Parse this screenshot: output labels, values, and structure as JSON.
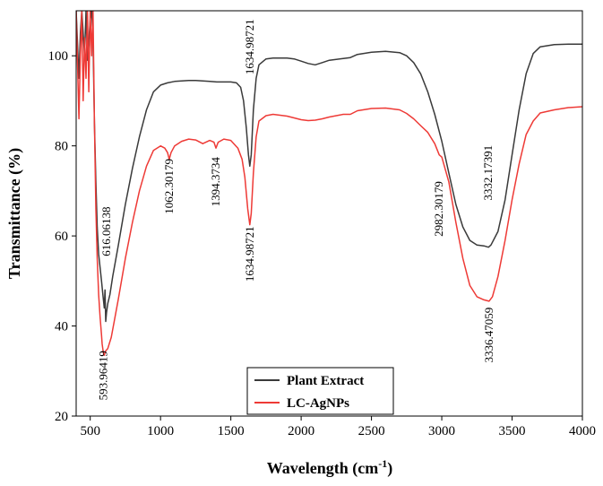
{
  "chart_data": {
    "type": "line",
    "xlabel": "Wavelength (cm",
    "xlabel_sup": "-1",
    "xlabel_suffix": ")",
    "ylabel": "Transmittance (%)",
    "xlim": [
      400,
      4000
    ],
    "ylim": [
      20,
      110
    ],
    "xticks": [
      500,
      1000,
      1500,
      2000,
      2500,
      3000,
      3500,
      4000
    ],
    "yticks": [
      20,
      40,
      60,
      80,
      100
    ],
    "series": [
      {
        "name": "Plant Extract",
        "color": "#3a3a3a",
        "points": [
          [
            400,
            110
          ],
          [
            420,
            95
          ],
          [
            430,
            105
          ],
          [
            440,
            110
          ],
          [
            460,
            100
          ],
          [
            470,
            110
          ],
          [
            480,
            99
          ],
          [
            500,
            108
          ],
          [
            510,
            110
          ],
          [
            520,
            104
          ],
          [
            530,
            85
          ],
          [
            540,
            72
          ],
          [
            550,
            62
          ],
          [
            560,
            56
          ],
          [
            570,
            53
          ],
          [
            580,
            50
          ],
          [
            590,
            47
          ],
          [
            600,
            44
          ],
          [
            605,
            48
          ],
          [
            610,
            41
          ],
          [
            616,
            43
          ],
          [
            625,
            45
          ],
          [
            640,
            47
          ],
          [
            660,
            51
          ],
          [
            700,
            58
          ],
          [
            750,
            67
          ],
          [
            800,
            75
          ],
          [
            850,
            82
          ],
          [
            900,
            88
          ],
          [
            950,
            92
          ],
          [
            1000,
            93.5
          ],
          [
            1050,
            94
          ],
          [
            1100,
            94.3
          ],
          [
            1150,
            94.4
          ],
          [
            1200,
            94.5
          ],
          [
            1250,
            94.5
          ],
          [
            1300,
            94.4
          ],
          [
            1350,
            94.3
          ],
          [
            1400,
            94.2
          ],
          [
            1450,
            94.2
          ],
          [
            1500,
            94.2
          ],
          [
            1540,
            94
          ],
          [
            1570,
            93
          ],
          [
            1590,
            90
          ],
          [
            1610,
            84
          ],
          [
            1625,
            78
          ],
          [
            1635,
            75.5
          ],
          [
            1645,
            78
          ],
          [
            1660,
            88
          ],
          [
            1680,
            95
          ],
          [
            1700,
            98
          ],
          [
            1750,
            99.3
          ],
          [
            1800,
            99.5
          ],
          [
            1900,
            99.5
          ],
          [
            1950,
            99.3
          ],
          [
            2000,
            98.8
          ],
          [
            2050,
            98.3
          ],
          [
            2100,
            98
          ],
          [
            2150,
            98.5
          ],
          [
            2200,
            99
          ],
          [
            2300,
            99.4
          ],
          [
            2350,
            99.6
          ],
          [
            2400,
            100.3
          ],
          [
            2500,
            100.8
          ],
          [
            2600,
            101
          ],
          [
            2700,
            100.7
          ],
          [
            2750,
            100
          ],
          [
            2800,
            98.5
          ],
          [
            2850,
            96
          ],
          [
            2900,
            92
          ],
          [
            2950,
            87
          ],
          [
            3000,
            81
          ],
          [
            3050,
            74
          ],
          [
            3100,
            67
          ],
          [
            3150,
            62
          ],
          [
            3200,
            59
          ],
          [
            3250,
            58
          ],
          [
            3300,
            57.8
          ],
          [
            3332,
            57.5
          ],
          [
            3350,
            58
          ],
          [
            3400,
            61
          ],
          [
            3450,
            68
          ],
          [
            3500,
            78
          ],
          [
            3550,
            88
          ],
          [
            3600,
            96
          ],
          [
            3650,
            100.5
          ],
          [
            3700,
            102
          ],
          [
            3800,
            102.5
          ],
          [
            3900,
            102.6
          ],
          [
            4000,
            102.6
          ]
        ]
      },
      {
        "name": "LC-AgNPs",
        "color": "#ee3a36",
        "points": [
          [
            400,
            110
          ],
          [
            420,
            86
          ],
          [
            430,
            100
          ],
          [
            440,
            110
          ],
          [
            450,
            90
          ],
          [
            460,
            104
          ],
          [
            470,
            95
          ],
          [
            480,
            110
          ],
          [
            490,
            92
          ],
          [
            500,
            110
          ],
          [
            510,
            100
          ],
          [
            520,
            110
          ],
          [
            530,
            85
          ],
          [
            540,
            66
          ],
          [
            550,
            55
          ],
          [
            560,
            47
          ],
          [
            570,
            42
          ],
          [
            580,
            38
          ],
          [
            585,
            36
          ],
          [
            594,
            34
          ],
          [
            600,
            33.5
          ],
          [
            610,
            34.5
          ],
          [
            625,
            35
          ],
          [
            650,
            37.5
          ],
          [
            700,
            46
          ],
          [
            750,
            55
          ],
          [
            800,
            63
          ],
          [
            850,
            70
          ],
          [
            900,
            75.5
          ],
          [
            950,
            79
          ],
          [
            1000,
            80
          ],
          [
            1030,
            79.5
          ],
          [
            1050,
            78.5
          ],
          [
            1062,
            77
          ],
          [
            1075,
            78.5
          ],
          [
            1100,
            80
          ],
          [
            1150,
            81
          ],
          [
            1200,
            81.5
          ],
          [
            1250,
            81.3
          ],
          [
            1300,
            80.5
          ],
          [
            1350,
            81.2
          ],
          [
            1380,
            80.8
          ],
          [
            1394,
            79.5
          ],
          [
            1410,
            80.8
          ],
          [
            1450,
            81.5
          ],
          [
            1500,
            81.2
          ],
          [
            1550,
            79.5
          ],
          [
            1580,
            77
          ],
          [
            1600,
            73
          ],
          [
            1620,
            66
          ],
          [
            1635,
            62.5
          ],
          [
            1645,
            65
          ],
          [
            1660,
            74
          ],
          [
            1680,
            82
          ],
          [
            1700,
            85.5
          ],
          [
            1750,
            86.7
          ],
          [
            1800,
            87
          ],
          [
            1850,
            86.8
          ],
          [
            1900,
            86.6
          ],
          [
            1950,
            86.2
          ],
          [
            2000,
            85.8
          ],
          [
            2050,
            85.6
          ],
          [
            2100,
            85.7
          ],
          [
            2150,
            86
          ],
          [
            2200,
            86.4
          ],
          [
            2300,
            87
          ],
          [
            2350,
            87
          ],
          [
            2400,
            87.8
          ],
          [
            2500,
            88.3
          ],
          [
            2600,
            88.4
          ],
          [
            2700,
            88
          ],
          [
            2750,
            87.2
          ],
          [
            2800,
            86
          ],
          [
            2850,
            84.5
          ],
          [
            2900,
            83
          ],
          [
            2950,
            80.5
          ],
          [
            2982,
            78
          ],
          [
            3000,
            77.5
          ],
          [
            3050,
            72
          ],
          [
            3100,
            63
          ],
          [
            3150,
            55
          ],
          [
            3200,
            49
          ],
          [
            3250,
            46.5
          ],
          [
            3300,
            45.8
          ],
          [
            3336,
            45.5
          ],
          [
            3360,
            46.5
          ],
          [
            3400,
            51
          ],
          [
            3450,
            59
          ],
          [
            3500,
            68
          ],
          [
            3550,
            76
          ],
          [
            3600,
            82.5
          ],
          [
            3650,
            85.5
          ],
          [
            3700,
            87.3
          ],
          [
            3800,
            88
          ],
          [
            3900,
            88.5
          ],
          [
            4000,
            88.7
          ]
        ]
      }
    ],
    "annotations": [
      {
        "text": "616.06138",
        "x": 616,
        "y": 61
      },
      {
        "text": "593.96419",
        "x": 594,
        "y": 29
      },
      {
        "text": "1062.30179",
        "x": 1062,
        "y": 71
      },
      {
        "text": "1394.3734",
        "x": 1394,
        "y": 72
      },
      {
        "text": "1634.98721",
        "x": 1635,
        "y": 102
      },
      {
        "text": "1634.98721",
        "x": 1635,
        "y": 56
      },
      {
        "text": "2982.30179",
        "x": 2982,
        "y": 66
      },
      {
        "text": "3332.17391",
        "x": 3332,
        "y": 74
      },
      {
        "text": "3336.47059",
        "x": 3336,
        "y": 38
      }
    ],
    "legend": {
      "placement": "bottom-center",
      "entries": [
        "Plant Extract",
        "LC-AgNPs"
      ]
    }
  }
}
